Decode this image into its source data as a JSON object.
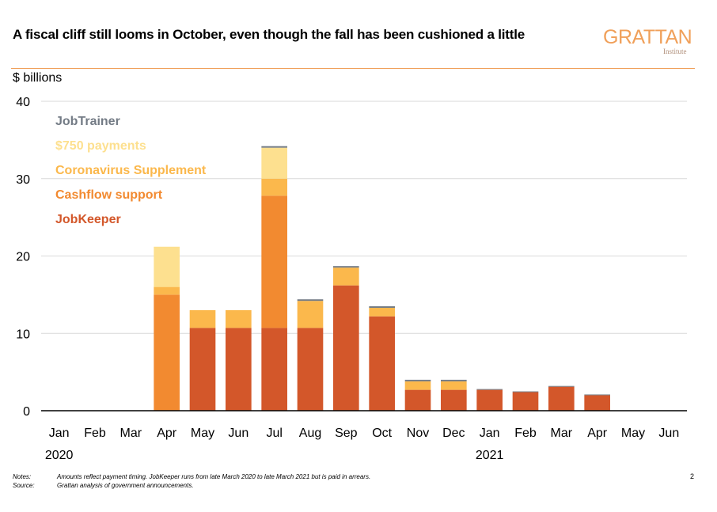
{
  "title": "A fiscal cliff still looms in October, even though the fall has been cushioned a little",
  "logo": {
    "word": "GRATTAN",
    "sub": "Institute"
  },
  "unit_label": "$ billions",
  "notes_label": "Notes:",
  "notes_text": "Amounts reflect payment timing. JobKeeper runs from late March 2020 to late March 2021 but is paid in arrears.",
  "source_label": "Source:",
  "source_text": "Grattan analysis of government announcements.",
  "page_number": "2",
  "colors": {
    "JobKeeper": "#d3572a",
    "Cashflow support": "#f28a30",
    "Coronavirus Supplement": "#fbb84c",
    "$750 payments": "#fde08f",
    "JobTrainer": "#737b85",
    "gridline": "#d9d9d9",
    "accent": "#f0a05a"
  },
  "chart_data": {
    "type": "bar",
    "stacked": true,
    "categories": [
      "Jan",
      "Feb",
      "Mar",
      "Apr",
      "May",
      "Jun",
      "Jul",
      "Aug",
      "Sep",
      "Oct",
      "Nov",
      "Dec",
      "Jan",
      "Feb",
      "Mar",
      "Apr",
      "May",
      "Jun"
    ],
    "year_labels": [
      {
        "index": 0,
        "label": "2020"
      },
      {
        "index": 12,
        "label": "2021"
      }
    ],
    "ylabel": "$ billions",
    "ylim": [
      0,
      40
    ],
    "yticks": [
      0,
      10,
      20,
      30,
      40
    ],
    "grid": true,
    "legend_position": "top-left",
    "series": [
      {
        "name": "JobKeeper",
        "values": [
          0,
          0,
          0,
          0,
          10.7,
          10.7,
          10.7,
          10.7,
          16.2,
          12.2,
          2.7,
          2.7,
          2.7,
          2.4,
          3.1,
          2.0,
          0,
          0
        ]
      },
      {
        "name": "Cashflow support",
        "values": [
          0,
          0,
          0,
          15.0,
          0,
          0,
          17.1,
          0,
          0,
          0,
          0,
          0,
          0,
          0,
          0,
          0,
          0,
          0
        ]
      },
      {
        "name": "Coronavirus Supplement",
        "values": [
          0,
          0,
          0,
          1.0,
          2.3,
          2.3,
          2.2,
          3.5,
          2.3,
          1.1,
          1.1,
          1.1,
          0,
          0,
          0,
          0,
          0,
          0
        ]
      },
      {
        "name": "$750 payments",
        "values": [
          0,
          0,
          0,
          5.2,
          0,
          0,
          4.0,
          0,
          0,
          0,
          0,
          0,
          0,
          0,
          0,
          0,
          0,
          0
        ]
      },
      {
        "name": "JobTrainer",
        "values": [
          0,
          0,
          0,
          0,
          0,
          0,
          0.2,
          0.2,
          0.2,
          0.2,
          0.2,
          0.2,
          0.1,
          0.1,
          0.1,
          0.1,
          0,
          0
        ]
      }
    ],
    "legend_order": [
      "JobTrainer",
      "$750 payments",
      "Coronavirus Supplement",
      "Cashflow support",
      "JobKeeper"
    ]
  }
}
